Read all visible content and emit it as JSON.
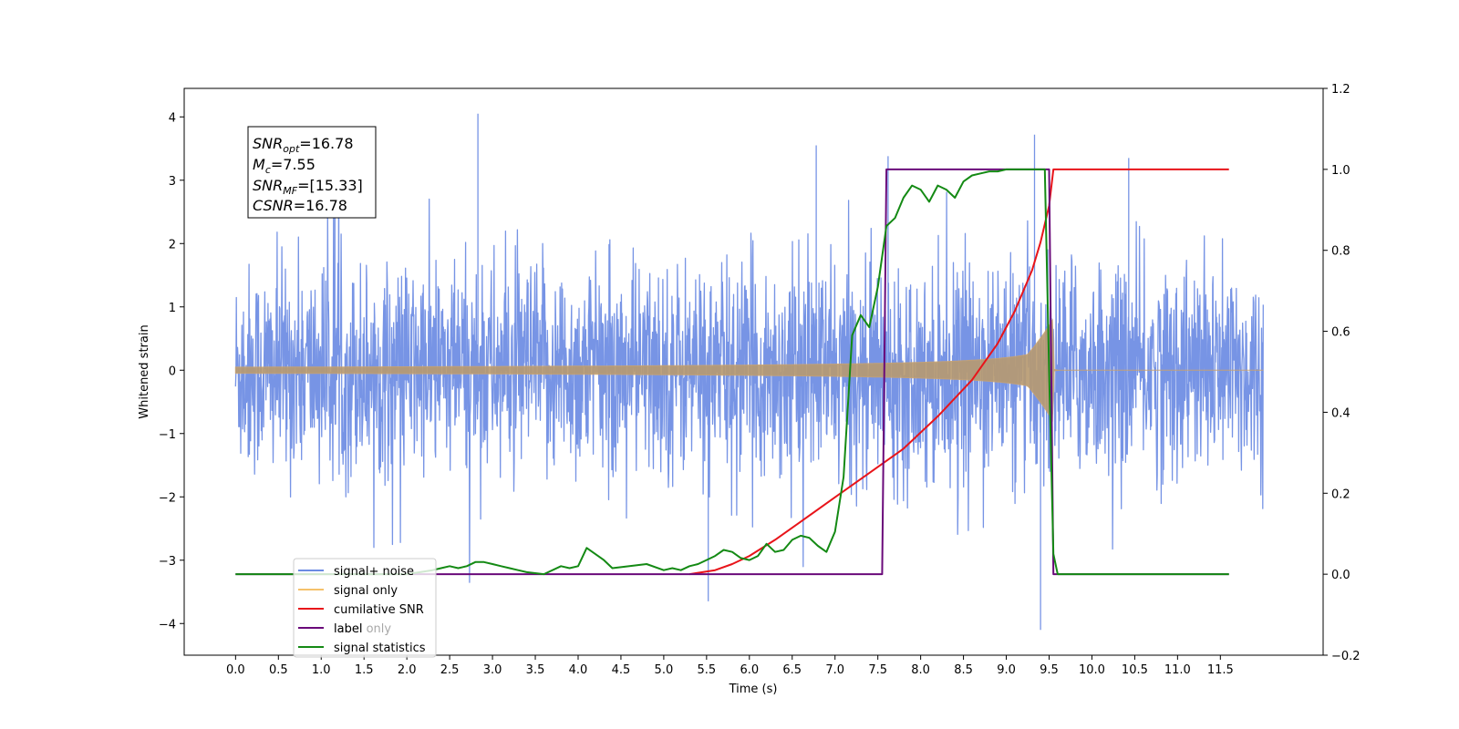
{
  "chart_data": {
    "type": "line",
    "xlabel": "Time (s)",
    "ylabel": "Whitened strain",
    "xlim": [
      -0.6,
      12.7
    ],
    "ylim": [
      -4.5,
      4.45
    ],
    "y2lim": [
      -0.2,
      1.2
    ],
    "grid": false,
    "legend_position": "lower-left",
    "x_ticks": [
      "0.0",
      "0.5",
      "1.0",
      "1.5",
      "2.0",
      "2.5",
      "3.0",
      "3.5",
      "4.0",
      "4.5",
      "5.0",
      "5.5",
      "6.0",
      "6.5",
      "7.0",
      "7.5",
      "8.0",
      "8.5",
      "9.0",
      "9.5",
      "10.0",
      "10.5",
      "11.0",
      "11.5"
    ],
    "y_ticks": [
      "4",
      "3",
      "2",
      "1",
      "0",
      "−1",
      "−2",
      "−3",
      "−4"
    ],
    "y2_ticks": [
      "1.2",
      "1.0",
      "0.8",
      "0.6",
      "0.4",
      "0.2",
      "0.0",
      "−0.2"
    ],
    "annotation": {
      "snr_opt": {
        "label": "SNR",
        "sub": "opt",
        "value": "=16.78"
      },
      "mc": {
        "label": "M",
        "sub": "c",
        "value": "=7.55"
      },
      "snr_mf": {
        "label": "SNR",
        "sub": "MF",
        "value": "=[15.33]"
      },
      "csnr": {
        "label": "CSNR",
        "sub": "",
        "value": "=16.78"
      }
    },
    "colors": {
      "noise": "#6b8be3",
      "signal": "#f5c26b",
      "cumulative": "#e8141a",
      "label": "#6a0a7a",
      "stats": "#148a14"
    },
    "series": [
      {
        "name": "signal+ noise",
        "axis": "left",
        "kind": "noise",
        "x_range": [
          0.0,
          12.0
        ],
        "typical_amplitude": 1.5,
        "max_peak": 4.05,
        "min_peak": -4.1
      },
      {
        "name": "signal only",
        "axis": "left",
        "kind": "chirp",
        "x_range": [
          0.0,
          12.0
        ],
        "merger_time": 9.55,
        "peak_amplitude": 1.1
      },
      {
        "name": "cumilative SNR",
        "axis": "right",
        "x": [
          5.3,
          5.6,
          5.8,
          6.0,
          6.3,
          6.6,
          7.0,
          7.4,
          7.8,
          8.2,
          8.6,
          8.9,
          9.1,
          9.3,
          9.4,
          9.5,
          9.55,
          9.6,
          11.6
        ],
        "y": [
          0.0,
          0.01,
          0.025,
          0.045,
          0.085,
          0.13,
          0.19,
          0.25,
          0.31,
          0.39,
          0.48,
          0.57,
          0.65,
          0.75,
          0.82,
          0.91,
          1.0,
          1.0,
          1.0
        ]
      },
      {
        "name": "label",
        "axis": "right",
        "x": [
          0.0,
          7.55,
          7.6,
          9.5,
          9.55,
          11.6
        ],
        "y": [
          0.0,
          0.0,
          1.0,
          1.0,
          0.0,
          0.0
        ]
      },
      {
        "name": "label only",
        "axis": "right",
        "hidden": true,
        "x": [],
        "y": []
      },
      {
        "name": "signal statistics",
        "axis": "right",
        "x": [
          0.0,
          2.0,
          2.3,
          2.4,
          2.5,
          2.6,
          2.7,
          2.8,
          2.9,
          3.0,
          3.1,
          3.2,
          3.3,
          3.4,
          3.6,
          3.8,
          3.9,
          4.0,
          4.1,
          4.2,
          4.3,
          4.4,
          4.6,
          4.8,
          5.0,
          5.1,
          5.2,
          5.3,
          5.4,
          5.5,
          5.6,
          5.7,
          5.8,
          5.9,
          6.0,
          6.1,
          6.2,
          6.3,
          6.4,
          6.5,
          6.6,
          6.7,
          6.8,
          6.9,
          7.0,
          7.1,
          7.2,
          7.3,
          7.4,
          7.5,
          7.6,
          7.7,
          7.8,
          7.9,
          8.0,
          8.1,
          8.2,
          8.3,
          8.4,
          8.5,
          8.6,
          8.7,
          8.8,
          8.9,
          9.0,
          9.1,
          9.3,
          9.45,
          9.5,
          9.55,
          9.6,
          9.65,
          11.6
        ],
        "y": [
          0.0,
          0.0,
          0.01,
          0.015,
          0.02,
          0.015,
          0.02,
          0.03,
          0.03,
          0.025,
          0.02,
          0.015,
          0.01,
          0.005,
          0.0,
          0.02,
          0.015,
          0.02,
          0.065,
          0.05,
          0.035,
          0.015,
          0.02,
          0.025,
          0.01,
          0.015,
          0.01,
          0.02,
          0.025,
          0.035,
          0.045,
          0.06,
          0.055,
          0.04,
          0.035,
          0.045,
          0.075,
          0.055,
          0.06,
          0.085,
          0.095,
          0.09,
          0.07,
          0.055,
          0.105,
          0.24,
          0.59,
          0.64,
          0.61,
          0.71,
          0.86,
          0.88,
          0.93,
          0.96,
          0.95,
          0.92,
          0.96,
          0.95,
          0.93,
          0.97,
          0.985,
          0.99,
          0.995,
          0.995,
          1.0,
          1.0,
          1.0,
          1.0,
          0.5,
          0.05,
          0.0,
          0.0,
          0.0
        ]
      }
    ]
  }
}
